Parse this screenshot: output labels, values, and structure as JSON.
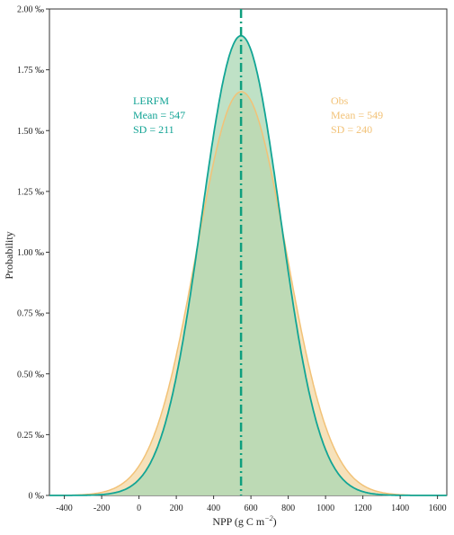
{
  "chart_data": {
    "type": "area",
    "xlabel": "NPP (g C m",
    "xlabel_sup": "−2",
    "xlabel_close": ")",
    "ylabel": "Probability",
    "xlim": [
      -480,
      1650
    ],
    "ylim": [
      0,
      2.0
    ],
    "x_ticks": [
      -400,
      -200,
      0,
      200,
      400,
      600,
      800,
      1000,
      1200,
      1400,
      1600
    ],
    "y_ticks": [
      {
        "value": 0.0,
        "label": "0 ‰"
      },
      {
        "value": 0.25,
        "label": "0.25 ‰"
      },
      {
        "value": 0.5,
        "label": "0.50 ‰"
      },
      {
        "value": 0.75,
        "label": "0.75 ‰"
      },
      {
        "value": 1.0,
        "label": "1.00 ‰"
      },
      {
        "value": 1.25,
        "label": "1.25 ‰"
      },
      {
        "value": 1.5,
        "label": "1.50 ‰"
      },
      {
        "value": 1.75,
        "label": "1.75 ‰"
      },
      {
        "value": 2.0,
        "label": "2.00 ‰"
      }
    ],
    "grid": false,
    "mean_line_x": 547,
    "series": [
      {
        "name": "LERFM",
        "mean": 547,
        "sd": 211,
        "peak": 1.89,
        "color": "#12a595",
        "fill": "#a9d7b3"
      },
      {
        "name": "Obs",
        "mean": 549,
        "sd": 240,
        "peak": 1.66,
        "color": "#f2c277",
        "fill": "#f5dcae"
      }
    ],
    "annotations": [
      {
        "lines": [
          "LERFM",
          "Mean = 547",
          "SD = 211"
        ],
        "color": "#11a394"
      },
      {
        "lines": [
          "Obs",
          "Mean = 549",
          "SD = 240"
        ],
        "color": "#f2c277"
      }
    ]
  }
}
